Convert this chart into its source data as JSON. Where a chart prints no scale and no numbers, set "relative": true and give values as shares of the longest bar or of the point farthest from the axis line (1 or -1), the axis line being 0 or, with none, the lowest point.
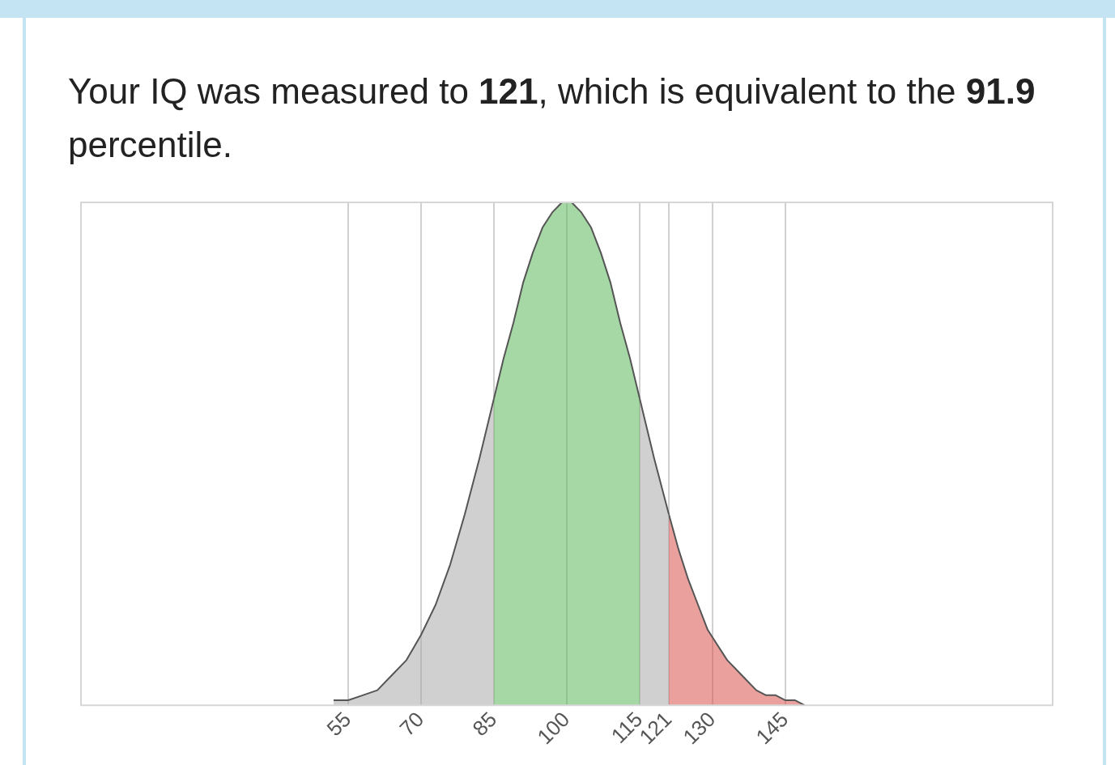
{
  "chart_data": {
    "type": "area",
    "title": "Your IQ was measured to 121, which is equivalent to the 91.9 percentile.",
    "relative": true,
    "xlim": [
      0,
      200
    ],
    "xticks": [
      55,
      70,
      85,
      100,
      115,
      121,
      130,
      145
    ],
    "grid": "x",
    "legend": false,
    "series": [
      {
        "color": "#aaaaaa",
        "x": [
          52,
          55,
          58,
          61,
          64,
          67,
          70,
          73,
          76,
          79,
          82,
          85
        ],
        "values": [
          0.01,
          0.01,
          0.02,
          0.03,
          0.06,
          0.09,
          0.14,
          0.2,
          0.28,
          0.38,
          0.49,
          0.61
        ]
      },
      {
        "color": "#aaaaaa",
        "x": [
          115,
          118,
          121
        ],
        "values": [
          0.61,
          0.49,
          0.38
        ]
      },
      {
        "color": "#5cb85c",
        "x": [
          85,
          87,
          89,
          91,
          93,
          95,
          97,
          99,
          101,
          103,
          105,
          107,
          109,
          111,
          113,
          115
        ],
        "values": [
          0.61,
          0.69,
          0.76,
          0.84,
          0.9,
          0.95,
          0.98,
          1.0,
          1.0,
          0.98,
          0.95,
          0.9,
          0.84,
          0.76,
          0.69,
          0.61
        ]
      },
      {
        "color": "#d9534f",
        "x": [
          121,
          123,
          125,
          127,
          129,
          131,
          133,
          135,
          137,
          139,
          141,
          143,
          145,
          147,
          149
        ],
        "values": [
          0.38,
          0.31,
          0.25,
          0.2,
          0.15,
          0.12,
          0.09,
          0.07,
          0.05,
          0.03,
          0.02,
          0.02,
          0.01,
          0.01,
          0
        ]
      }
    ]
  }
}
